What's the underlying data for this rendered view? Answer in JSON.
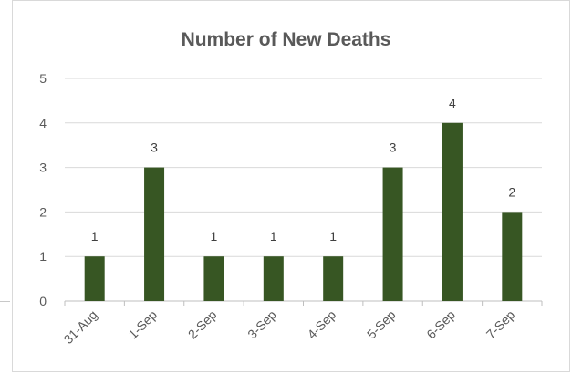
{
  "chart_data": {
    "type": "bar",
    "title": "Number of New Deaths",
    "categories": [
      "31-Aug",
      "1-Sep",
      "2-Sep",
      "3-Sep",
      "4-Sep",
      "5-Sep",
      "6-Sep",
      "7-Sep"
    ],
    "values": [
      1,
      3,
      1,
      1,
      1,
      3,
      4,
      2
    ],
    "ylim": [
      0,
      5
    ],
    "yticks": [
      0,
      1,
      2,
      3,
      4,
      5
    ],
    "grid": true,
    "data_labels": true,
    "xlabel": "",
    "ylabel": "",
    "colors": {
      "bar": "#375623",
      "grid": "#d9d9d9",
      "text": "#595959"
    }
  }
}
